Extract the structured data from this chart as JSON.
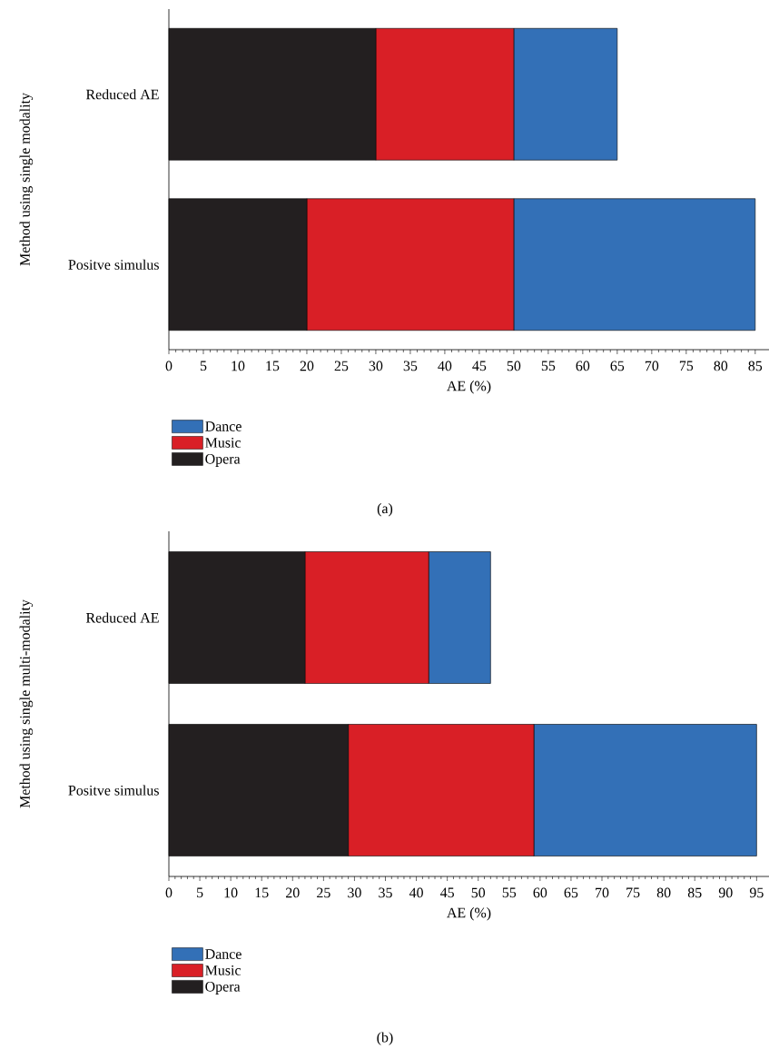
{
  "chart_data": [
    {
      "type": "bar",
      "orientation": "horizontal",
      "stacked": true,
      "xlabel": "AE (%)",
      "ylabel": "Method using single modality",
      "categories": [
        "Reduced AE",
        "Positve simulus"
      ],
      "series": [
        {
          "name": "Opera",
          "color": "#231f20",
          "values": [
            30,
            20
          ]
        },
        {
          "name": "Music",
          "color": "#d91f26",
          "values": [
            20,
            30
          ]
        },
        {
          "name": "Dance",
          "color": "#3370b7",
          "values": [
            15,
            35
          ]
        }
      ],
      "xlim": [
        0,
        87
      ],
      "xticks": [
        0,
        5,
        10,
        15,
        20,
        25,
        30,
        35,
        40,
        45,
        50,
        55,
        60,
        65,
        70,
        75,
        80,
        85
      ],
      "legend": "bottom left",
      "annotations": [
        "(a)"
      ]
    },
    {
      "type": "bar",
      "orientation": "horizontal",
      "stacked": true,
      "xlabel": "AE (%)",
      "ylabel": "Method using single multi-modality",
      "categories": [
        "Reduced AE",
        "Positve simulus"
      ],
      "series": [
        {
          "name": "Opera",
          "color": "#231f20",
          "values": [
            22,
            29
          ]
        },
        {
          "name": "Music",
          "color": "#d91f26",
          "values": [
            20,
            30
          ]
        },
        {
          "name": "Dance",
          "color": "#3370b7",
          "values": [
            10,
            36
          ]
        }
      ],
      "xlim": [
        0,
        97
      ],
      "xticks": [
        0,
        5,
        10,
        15,
        20,
        25,
        30,
        35,
        40,
        45,
        50,
        55,
        60,
        65,
        70,
        75,
        80,
        85,
        90,
        95
      ],
      "legend": "bottom left",
      "annotations": [
        "(b)"
      ]
    }
  ]
}
